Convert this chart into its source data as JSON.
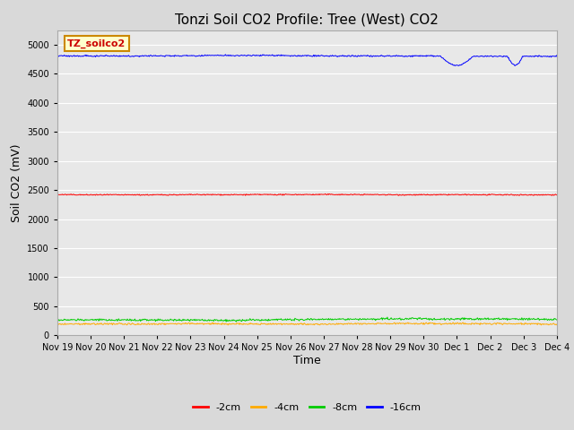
{
  "title": "Tonzi Soil CO2 Profile: Tree (West) CO2",
  "xlabel": "Time",
  "ylabel": "Soil CO2 (mV)",
  "watermark_text": "TZ_soilco2",
  "watermark_bg": "#ffffcc",
  "watermark_border": "#cc8800",
  "watermark_text_color": "#cc0000",
  "ylim": [
    0,
    5250
  ],
  "yticks": [
    0,
    500,
    1000,
    1500,
    2000,
    2500,
    3000,
    3500,
    4000,
    4500,
    5000
  ],
  "plot_bg": "#e8e8e8",
  "fig_bg": "#d9d9d9",
  "grid_color": "#ffffff",
  "series": {
    "-2cm": {
      "color": "#ff0000",
      "mean": 2420,
      "noise": 15,
      "seed": 42
    },
    "-4cm": {
      "color": "#ffaa00",
      "mean": 195,
      "noise": 25,
      "seed": 43
    },
    "-8cm": {
      "color": "#00cc00",
      "mean": 270,
      "noise": 30,
      "seed": 44
    },
    "-16cm": {
      "color": "#0000ff",
      "mean": 4810,
      "noise": 20,
      "seed": 45
    }
  },
  "n_points": 800,
  "x_start": 0,
  "x_end": 15,
  "xtick_pos": [
    0,
    1,
    2,
    3,
    4,
    5,
    6,
    7,
    8,
    9,
    10,
    11,
    12,
    13,
    14,
    15
  ],
  "xtick_labels": [
    "Nov 19",
    "Nov 20",
    "Nov 21",
    "Nov 22",
    "Nov 23",
    "Nov 24",
    "Nov 25",
    "Nov 26",
    "Nov 27",
    "Nov 28",
    "Nov 29",
    "Nov 30",
    "Dec 1",
    "Dec 2",
    "Dec 3",
    "Dec 4"
  ],
  "title_fontsize": 11,
  "axis_label_fontsize": 9,
  "tick_fontsize": 7,
  "legend_fontsize": 8,
  "linewidth": 0.7
}
